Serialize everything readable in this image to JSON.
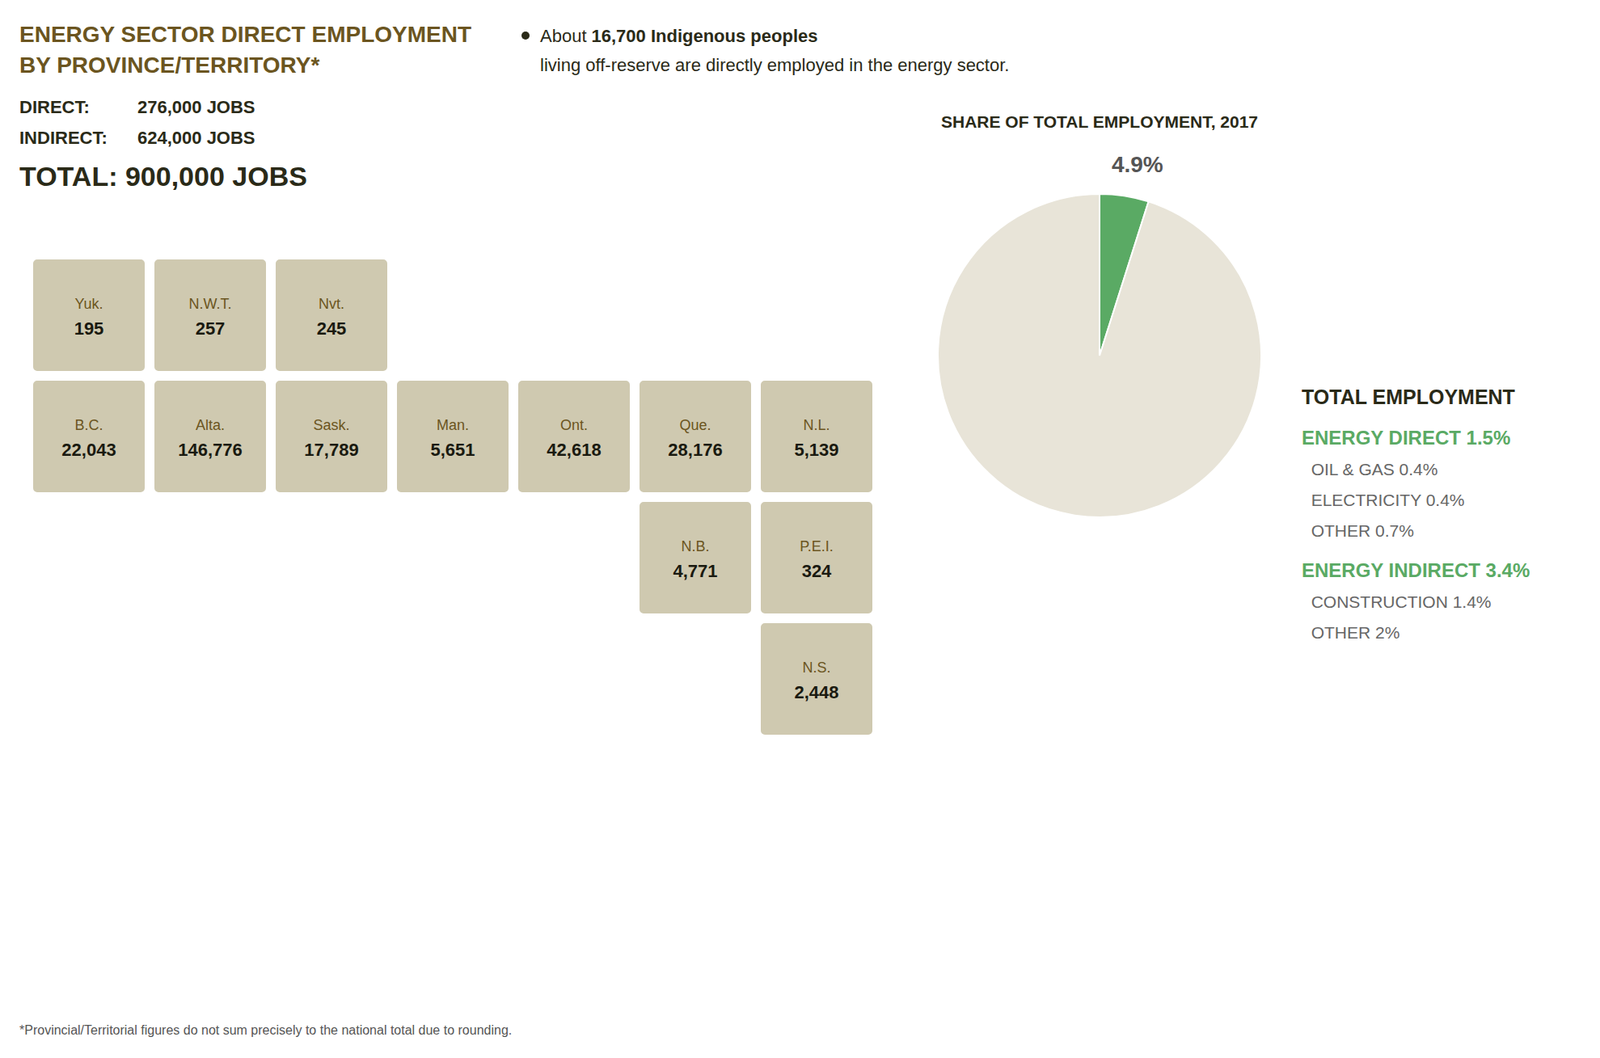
{
  "chart_data": [
    {
      "type": "map",
      "title": "ENERGY SECTOR DIRECT EMPLOYMENT",
      "subtitle": "BY PROVINCE/TERRITORY*",
      "categories": [
        "Yuk.",
        "N.W.T.",
        "Nvt.",
        "B.C.",
        "Alta.",
        "Sask.",
        "Man.",
        "Ont.",
        "Que.",
        "N.L.",
        "N.B.",
        "N.S.",
        "P.E.I."
      ],
      "values": [
        195,
        257,
        245,
        22043,
        146776,
        17789,
        5651,
        42618,
        28176,
        5139,
        4771,
        2448,
        324
      ],
      "value_labels": [
        "195",
        "257",
        "245",
        "22,043",
        "146,776",
        "17,789",
        "5,651",
        "42,618",
        "28,176",
        "5,139",
        "4,771",
        "2,448",
        "324"
      ],
      "data_labels": true,
      "color": "#cfc9b0",
      "annotations": [
        "DIRECT:",
        "276,000 JOBS",
        "INDIRECT:",
        "624,000 JOBS",
        "TOTAL: 900,000 JOBS",
        "About",
        "16,700 Indigenous peoples",
        "living off-reserve are directly employed in the energy sector.",
        "*Provincial/Territorial figures do not sum precisely to the national total due to rounding."
      ]
    },
    {
      "type": "pie",
      "title": "SHARE OF TOTAL EMPLOYMENT, 2017",
      "values": [
        4.9,
        95.1
      ],
      "colors": [
        "#5aaa64",
        "#e8e4d8"
      ],
      "annotations": [
        "4.9%",
        "TOTAL EMPLOYMENT",
        "ENERGY DIRECT 1.5%",
        "  OIL & GAS 0.4%",
        "  ELECTRICITY 0.4%",
        "  OTHER 0.7%",
        "ENERGY INDIRECT 3.4%",
        "  CONSTRUCTION 1.4%",
        "  OTHER 2%"
      ]
    }
  ]
}
